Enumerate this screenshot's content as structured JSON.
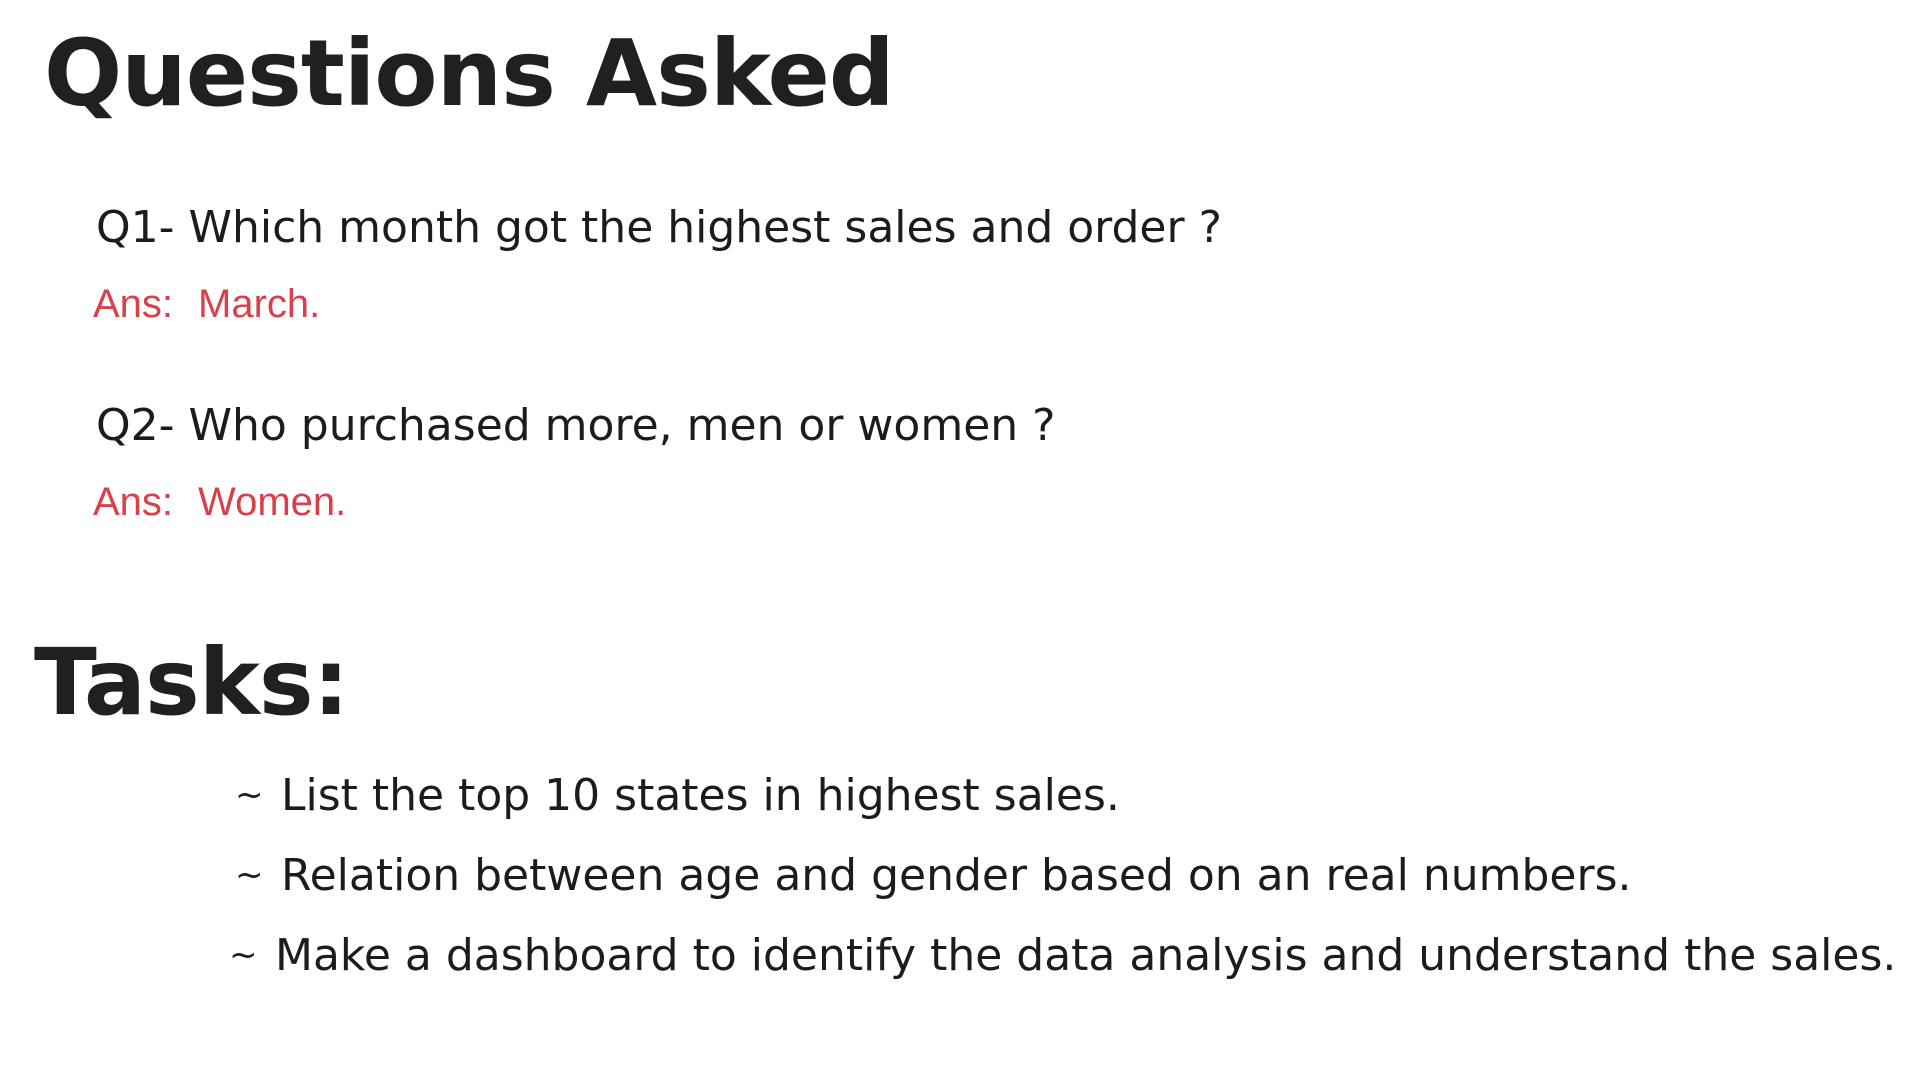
{
  "title": "Questions Asked",
  "questions": [
    {
      "question": "Q1- Which month got the highest sales and order ?",
      "answer_label": "Ans:",
      "answer": "March."
    },
    {
      "question": "Q2- Who purchased more, men or women ?",
      "answer_label": "Ans:",
      "answer": "Women."
    }
  ],
  "tasks_heading": "Tasks:",
  "tasks": [
    {
      "bullet": "~",
      "text": "List the top 10 states in highest sales."
    },
    {
      "bullet": "~",
      "text": "Relation between age and gender based on an real numbers."
    },
    {
      "bullet": "~",
      "text": "Make a dashboard to identify the data analysis and understand the sales."
    }
  ],
  "colors": {
    "text": "#1f1f1f",
    "answer": "#d9414a",
    "background": "#ffffff"
  }
}
